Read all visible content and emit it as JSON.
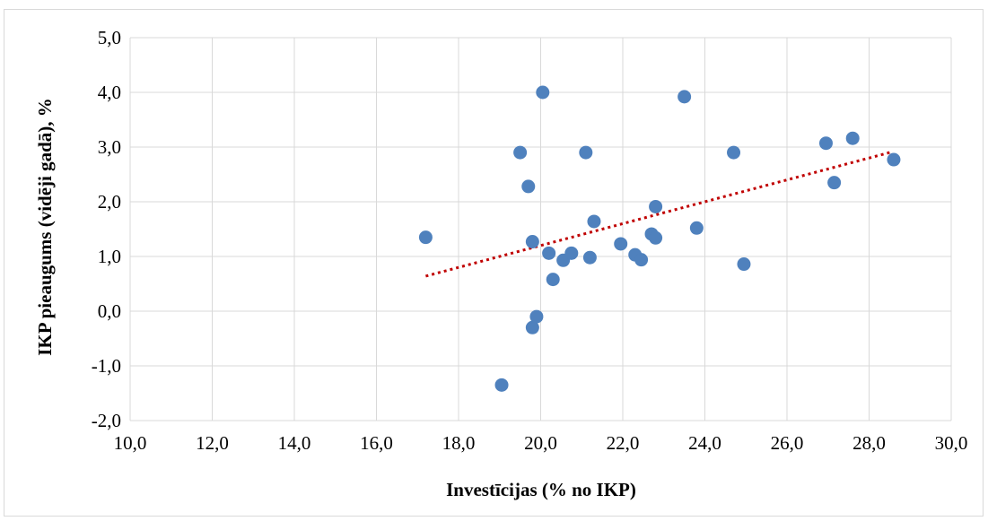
{
  "chart_data": {
    "type": "scatter",
    "title": "",
    "xlabel": "Investīcijas (% no IKP)",
    "ylabel": "IKP pieaugums (vidēji gadā), %",
    "xlim": [
      10,
      30
    ],
    "ylim": [
      -2,
      5
    ],
    "x_ticks": [
      "10,0",
      "12,0",
      "14,0",
      "16,0",
      "18,0",
      "20,0",
      "22,0",
      "24,0",
      "26,0",
      "28,0",
      "30,0"
    ],
    "y_ticks": [
      "-2,0",
      "-1,0",
      "0,0",
      "1,0",
      "2,0",
      "3,0",
      "4,0",
      "5,0"
    ],
    "grid": true,
    "legend": "none",
    "colors": {
      "points": "#4f81bd",
      "trendline": "#c00000",
      "grid": "#d9d9d9"
    },
    "series": [
      {
        "points": [
          [
            17.2,
            1.35
          ],
          [
            19.05,
            -1.35
          ],
          [
            19.5,
            2.9
          ],
          [
            19.7,
            2.28
          ],
          [
            19.8,
            1.27
          ],
          [
            19.8,
            -0.3
          ],
          [
            19.9,
            -0.1
          ],
          [
            20.05,
            4.0
          ],
          [
            20.2,
            1.06
          ],
          [
            20.3,
            0.58
          ],
          [
            20.55,
            0.93
          ],
          [
            20.75,
            1.06
          ],
          [
            21.1,
            2.9
          ],
          [
            21.2,
            0.98
          ],
          [
            21.3,
            1.64
          ],
          [
            21.95,
            1.23
          ],
          [
            22.3,
            1.03
          ],
          [
            22.45,
            0.94
          ],
          [
            22.7,
            1.41
          ],
          [
            22.8,
            1.91
          ],
          [
            22.8,
            1.34
          ],
          [
            23.5,
            3.92
          ],
          [
            23.8,
            1.52
          ],
          [
            24.7,
            2.9
          ],
          [
            24.95,
            0.86
          ],
          [
            26.95,
            3.07
          ],
          [
            27.15,
            2.35
          ],
          [
            27.6,
            3.16
          ],
          [
            28.6,
            2.77
          ]
        ]
      }
    ],
    "trendline": {
      "style": "dotted",
      "points": [
        [
          17.2,
          0.64
        ],
        [
          28.5,
          2.9
        ]
      ]
    }
  }
}
